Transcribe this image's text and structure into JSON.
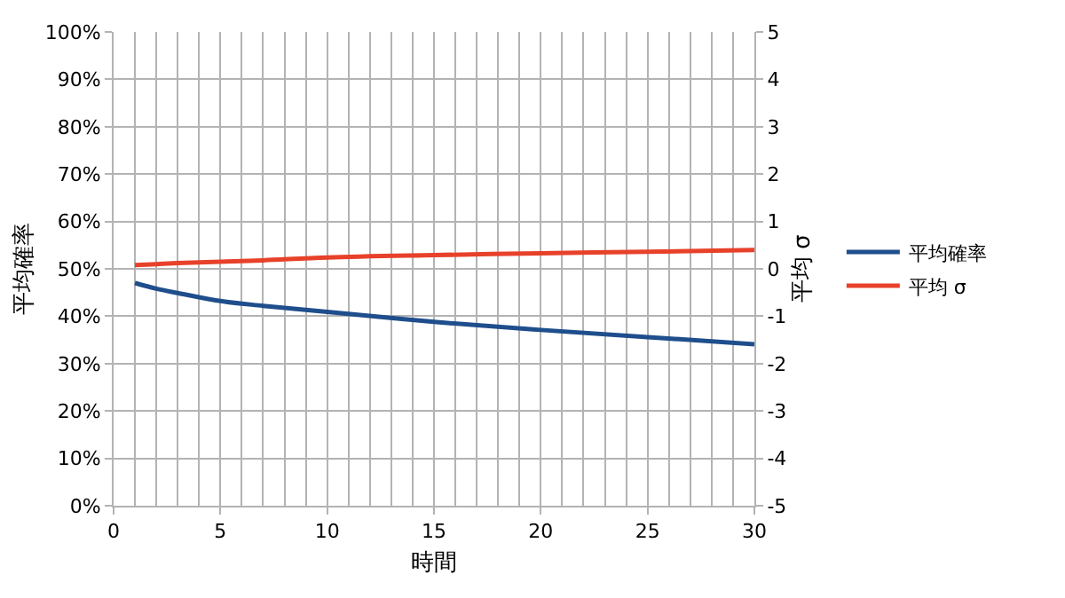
{
  "chart_data": {
    "type": "line",
    "xlabel": "時間",
    "ylabel": "平均確率",
    "y2label": "平均 σ",
    "x": [
      1,
      2,
      3,
      5,
      7,
      10,
      15,
      20,
      25,
      30
    ],
    "series": [
      {
        "name": "平均確率",
        "color": "#1f4e8c",
        "values": [
          0.47,
          0.458,
          0.449,
          0.432,
          0.422,
          0.409,
          0.388,
          0.371,
          0.356,
          0.341
        ]
      },
      {
        "name": "平均 σ",
        "color": "#e8412a",
        "axis": "y2",
        "values": [
          0.08,
          0.1,
          0.12,
          0.15,
          0.18,
          0.24,
          0.29,
          0.33,
          0.36,
          0.4
        ]
      }
    ],
    "xlim": [
      0,
      30
    ],
    "xticks": [
      0,
      5,
      10,
      15,
      20,
      25,
      30
    ],
    "ylim": [
      0,
      1
    ],
    "yticks": [
      {
        "value": 0,
        "label": "0%"
      },
      {
        "value": 0.1,
        "label": "10%"
      },
      {
        "value": 0.2,
        "label": "20%"
      },
      {
        "value": 0.3,
        "label": "30%"
      },
      {
        "value": 0.4,
        "label": "40%"
      },
      {
        "value": 0.5,
        "label": "50%"
      },
      {
        "value": 0.6,
        "label": "60%"
      },
      {
        "value": 0.7,
        "label": "70%"
      },
      {
        "value": 0.8,
        "label": "80%"
      },
      {
        "value": 0.9,
        "label": "90%"
      },
      {
        "value": 1,
        "label": "100%"
      }
    ],
    "y2lim": [
      -5,
      5
    ],
    "y2ticks": [
      -5,
      -4,
      -3,
      -2,
      -1,
      0,
      1,
      2,
      3,
      4,
      5
    ],
    "grid": true,
    "legend": "right",
    "marker": "none",
    "line_style": "solid"
  }
}
